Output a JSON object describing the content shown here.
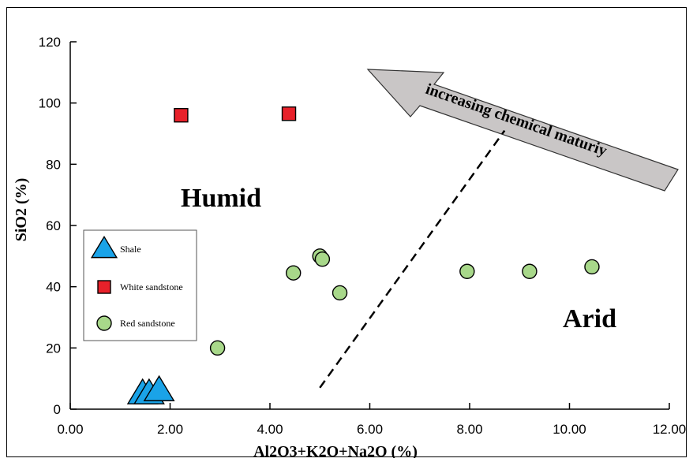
{
  "chart_data": {
    "type": "scatter",
    "title": "",
    "xlabel": "Al2O3+K2O+Na2O (%)",
    "ylabel": "SiO2 (%)",
    "xlim": [
      0,
      12
    ],
    "ylim": [
      0,
      120
    ],
    "x_ticks": [
      "0.00",
      "2.00",
      "4.00",
      "6.00",
      "8.00",
      "10.00",
      "12.00"
    ],
    "y_ticks": [
      "0",
      "20",
      "40",
      "60",
      "80",
      "100",
      "120"
    ],
    "grid": false,
    "legend_position": "left",
    "series": [
      {
        "name": "Shale",
        "marker": "triangle",
        "color": "#1aa3e8",
        "points": [
          [
            1.45,
            5
          ],
          [
            1.58,
            5
          ],
          [
            1.78,
            6
          ]
        ]
      },
      {
        "name": "White sandstone",
        "marker": "square",
        "color": "#e8212a",
        "points": [
          [
            2.22,
            96
          ],
          [
            4.38,
            96.5
          ]
        ]
      },
      {
        "name": "Red sandstone",
        "marker": "circle",
        "color": "#a8d88a",
        "points": [
          [
            2.95,
            20
          ],
          [
            4.47,
            44.5
          ],
          [
            5.0,
            50
          ],
          [
            5.05,
            49
          ],
          [
            5.4,
            38
          ],
          [
            7.95,
            45
          ],
          [
            9.2,
            45
          ],
          [
            10.45,
            46.5
          ]
        ]
      }
    ],
    "annotations": {
      "humid": "Humid",
      "arid": "Arid",
      "arrow_text": "increasing chemical maturiy"
    },
    "divider_line": [
      [
        5.0,
        7
      ],
      [
        8.7,
        91
      ]
    ]
  }
}
